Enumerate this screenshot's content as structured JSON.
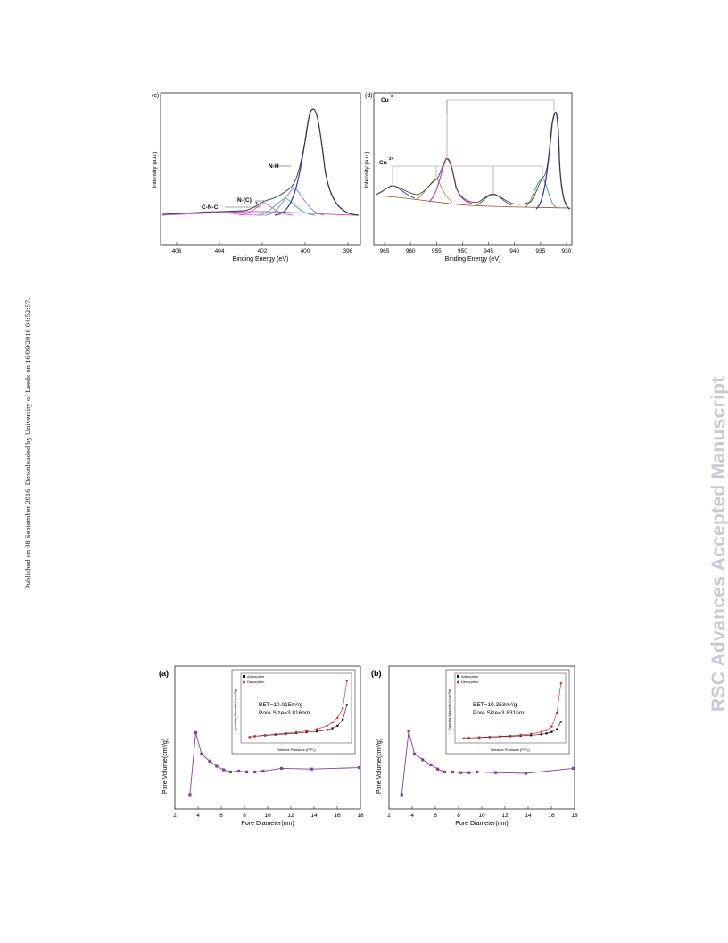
{
  "side_note": "Published on 08 September 2016. Downloaded by University of Leeds on 16/09/2016 04:52:57.",
  "watermark": "RSC Advances Accepted Manuscript",
  "figures": {
    "c": {
      "panel_label": "(c)",
      "xlabel": "Binding Energy (eV)",
      "ylabel": "Intensity (a.u.)",
      "xticks": [
        "406",
        "404",
        "402",
        "400",
        "398"
      ],
      "annotations": [
        "N-H",
        "N-(C)",
        "3",
        "C-N-C"
      ],
      "colors": {
        "envelope": "#333333",
        "main": "#3a3aa8",
        "peak2": "#6f86c9",
        "peak3": "#3aa8a0",
        "peak4": "#cc55cc",
        "baseline": "#d040d0"
      }
    },
    "d": {
      "panel_label": "(d)",
      "xlabel": "Binding Energy (eV)",
      "ylabel": "Intensity (a.u.)",
      "xticks": [
        "965",
        "960",
        "955",
        "950",
        "945",
        "940",
        "935",
        "930"
      ],
      "annotations": [
        "Cu",
        "0",
        "Cu",
        "2+"
      ],
      "colors": {
        "envelope": "#333333",
        "main": "#3a3aa8",
        "sat": "#cc33cc",
        "green": "#3a9a6a",
        "olive": "#a08a3a"
      }
    },
    "a": {
      "panel_label": "(a)",
      "xlabel": "Pore Diameter(nm)",
      "ylabel": "Pore Volume(cm³/g)",
      "xticks": [
        "2",
        "4",
        "6",
        "8",
        "10",
        "12",
        "14",
        "16",
        "18"
      ],
      "inset_text": [
        "BET=10.015m²/g",
        "Pore Size=3.816nm"
      ],
      "legend": [
        "Adsorption",
        "Desorption"
      ],
      "inset_xlabel": "Relative Pressure (P/P₀)",
      "inset_ylabel": "Quantity Adsorbed (cm³/g)"
    },
    "b": {
      "panel_label": "(b)",
      "xlabel": "Pore Diameter(nm)",
      "ylabel": "Pore Volume(cm³/g)",
      "xticks": [
        "2",
        "4",
        "6",
        "8",
        "10",
        "12",
        "14",
        "16",
        "18"
      ],
      "inset_text": [
        "BET=10.353m²/g",
        "Pore Size=3.831nm"
      ],
      "legend": [
        "Adsorption",
        "Desorption"
      ],
      "inset_xlabel": "Relative Pressure (P/P₀)",
      "inset_ylabel": "Quantity Adsorbed (cm³/g)"
    },
    "psd_color": "#8a3aa0",
    "ads_color": "#111111",
    "des_color": "#e02020"
  },
  "chart_data": [
    {
      "type": "line",
      "panel": "(a)",
      "xlabel": "Pore Diameter(nm)",
      "ylabel": "Pore Volume(cm³/g)",
      "xlim": [
        2,
        18
      ],
      "x": [
        3.3,
        3.8,
        4.3,
        5.0,
        5.6,
        6.2,
        6.8,
        7.5,
        8.2,
        8.9,
        9.6,
        11.2,
        13.8,
        17.9
      ],
      "y": [
        0.05,
        0.92,
        0.62,
        0.52,
        0.45,
        0.4,
        0.37,
        0.38,
        0.37,
        0.37,
        0.38,
        0.42,
        0.41,
        0.43
      ]
    },
    {
      "type": "line",
      "panel": "(b)",
      "xlabel": "Pore Diameter(nm)",
      "ylabel": "Pore Volume(cm³/g)",
      "xlim": [
        2,
        18
      ],
      "x": [
        3.1,
        3.7,
        4.2,
        4.9,
        5.6,
        6.2,
        6.8,
        7.5,
        8.2,
        8.9,
        9.6,
        11.2,
        13.8,
        17.9
      ],
      "y": [
        0.05,
        0.94,
        0.62,
        0.54,
        0.47,
        0.41,
        0.37,
        0.37,
        0.36,
        0.36,
        0.37,
        0.36,
        0.35,
        0.42
      ]
    },
    {
      "type": "line",
      "panel": "(a) inset",
      "xlabel": "Relative Pressure (P/P₀)",
      "ylabel": "Quantity Adsorbed (cm³/g)",
      "xlim": [
        0,
        1
      ],
      "ylim": [
        0,
        40
      ],
      "series": [
        {
          "name": "Adsorption",
          "x": [
            0.05,
            0.1,
            0.2,
            0.3,
            0.4,
            0.5,
            0.6,
            0.7,
            0.8,
            0.85,
            0.9,
            0.95,
            0.99
          ],
          "y": [
            2,
            2.5,
            3,
            3.5,
            4,
            4.5,
            5,
            5.5,
            6.5,
            7.5,
            9,
            13,
            22
          ]
        },
        {
          "name": "Desorption",
          "x": [
            0.05,
            0.1,
            0.2,
            0.3,
            0.4,
            0.5,
            0.6,
            0.7,
            0.8,
            0.85,
            0.9,
            0.95,
            0.99
          ],
          "y": [
            2,
            2.6,
            3.2,
            3.8,
            4.4,
            5,
            5.8,
            7,
            9,
            11,
            14,
            20,
            37
          ]
        }
      ]
    },
    {
      "type": "line",
      "panel": "(b) inset",
      "xlabel": "Relative Pressure (P/P₀)",
      "ylabel": "Quantity Adsorbed (cm³/g)",
      "xlim": [
        0,
        1
      ],
      "ylim": [
        0,
        70
      ],
      "series": [
        {
          "name": "Adsorption",
          "x": [
            0.05,
            0.1,
            0.2,
            0.3,
            0.4,
            0.5,
            0.6,
            0.7,
            0.8,
            0.85,
            0.9,
            0.95,
            0.99
          ],
          "y": [
            2,
            2.5,
            3,
            3.5,
            4,
            4.5,
            5,
            5.5,
            6.5,
            7.5,
            9,
            12,
            20
          ]
        },
        {
          "name": "Desorption",
          "x": [
            0.05,
            0.1,
            0.2,
            0.3,
            0.4,
            0.5,
            0.6,
            0.7,
            0.8,
            0.85,
            0.9,
            0.95,
            0.99
          ],
          "y": [
            2,
            2.6,
            3.2,
            3.8,
            4.4,
            5,
            5.8,
            7,
            9,
            11,
            15,
            30,
            62
          ]
        }
      ]
    }
  ]
}
